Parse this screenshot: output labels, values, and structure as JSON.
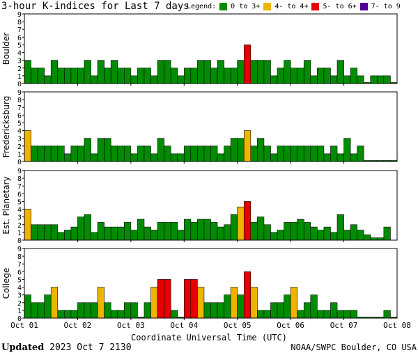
{
  "title": "3-hour K-indices for Last 7 days",
  "legend": {
    "label": "Legend:",
    "items": [
      {
        "label": "0 to 3+",
        "color": "#008c00"
      },
      {
        "label": "4- to 4+",
        "color": "#f0b400"
      },
      {
        "label": "5- to 6+",
        "color": "#e60000"
      },
      {
        "label": "7- to 9",
        "color": "#500096"
      }
    ]
  },
  "footer": {
    "updated_label": "Updated",
    "updated_value": "2023 Oct  7 2130",
    "source": "NOAA/SWPC Boulder, CO USA"
  },
  "chart_data": {
    "type": "bar",
    "xlabel": "Coordinate Universal Time (UTC)",
    "x_tick_labels": [
      "Oct 01",
      "Oct 02",
      "Oct 03",
      "Oct 04",
      "Oct 05",
      "Oct 06",
      "Oct 07",
      "Oct 08"
    ],
    "y_tick_labels": [
      "0",
      "1",
      "2",
      "3",
      "4",
      "5",
      "6",
      "7",
      "8",
      "9"
    ],
    "ylim": [
      0,
      9
    ],
    "grid": false,
    "bins_per_day": 8,
    "color_thresholds": {
      "green_below": 3.8,
      "yellow_below": 4.8,
      "red_below": 6.8
    },
    "panels": [
      {
        "name": "Boulder",
        "values": [
          3,
          2,
          2,
          1,
          3,
          2,
          2,
          2,
          2,
          3,
          1,
          3,
          2,
          3,
          2,
          2,
          1,
          2,
          2,
          1,
          3,
          3,
          2,
          1,
          2,
          2,
          3,
          3,
          2,
          3,
          2,
          2,
          3,
          5,
          3,
          3,
          3,
          1,
          2,
          3,
          2,
          2,
          3,
          1,
          2,
          2,
          1,
          3,
          1,
          2,
          1,
          0,
          1,
          1,
          1,
          0
        ]
      },
      {
        "name": "Fredericksburg",
        "values": [
          4,
          2,
          2,
          2,
          2,
          2,
          1,
          2,
          2,
          3,
          1,
          3,
          3,
          2,
          2,
          2,
          1,
          2,
          2,
          1,
          3,
          2,
          1,
          1,
          2,
          2,
          2,
          2,
          2,
          1,
          2,
          3,
          3,
          4,
          2,
          3,
          2,
          1,
          2,
          2,
          2,
          2,
          2,
          2,
          2,
          1,
          2,
          1,
          3,
          1,
          2,
          0,
          0,
          0,
          0,
          0
        ]
      },
      {
        "name": "Est. Planetary",
        "values": [
          4,
          2,
          2,
          2,
          2,
          1,
          1.3,
          1.7,
          3,
          3.3,
          1,
          2.3,
          1.7,
          1.7,
          1.7,
          2.3,
          1.3,
          2.7,
          1.7,
          1.3,
          2.3,
          2.3,
          2.3,
          1.3,
          2.7,
          2.3,
          2.7,
          2.7,
          2.3,
          1.7,
          2,
          3.3,
          4.3,
          5,
          2.3,
          3,
          2,
          1,
          1.3,
          2.3,
          2.3,
          2.7,
          2.3,
          1.7,
          1.3,
          1.7,
          1,
          3.3,
          1.3,
          2,
          1.3,
          0.7,
          0.3,
          0.3,
          1.7
        ]
      },
      {
        "name": "College",
        "values": [
          3,
          2,
          2,
          3,
          4,
          1,
          1,
          1,
          2,
          2,
          2,
          4,
          2,
          1,
          1,
          2,
          2,
          0,
          2,
          4,
          5,
          5,
          1,
          0,
          5,
          5,
          4,
          2,
          2,
          2,
          3,
          4,
          3,
          6,
          4,
          1,
          1,
          2,
          2,
          3,
          4,
          1,
          2,
          3,
          1,
          1,
          2,
          1,
          1,
          1,
          0,
          0,
          0,
          0,
          1,
          0
        ]
      }
    ]
  }
}
